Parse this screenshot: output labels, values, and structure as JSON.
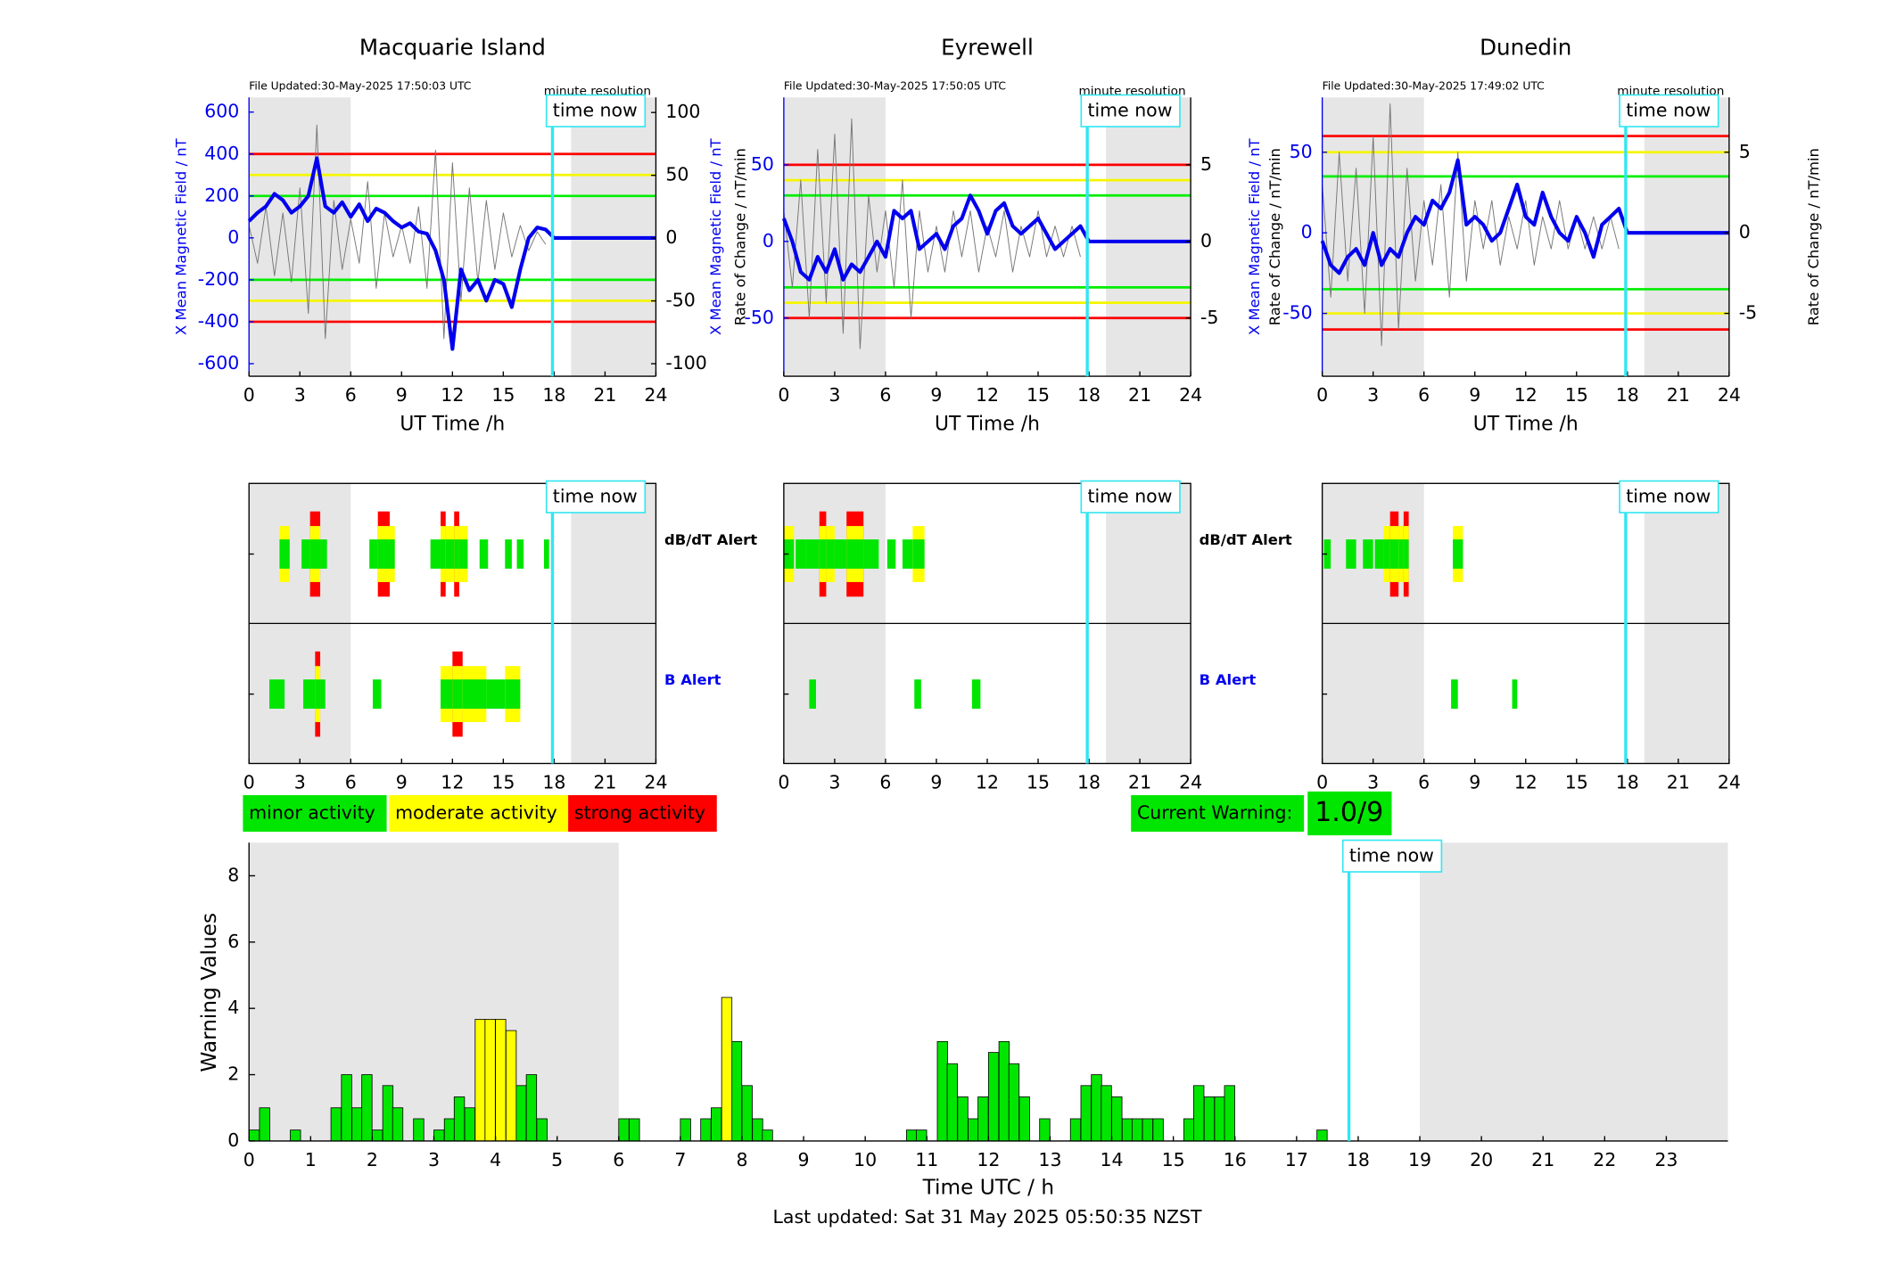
{
  "chart_data": [
    {
      "type": "line",
      "title": "Macquarie Island",
      "file_updated": "File Updated:30-May-2025 17:50:03 UTC",
      "resolution": "minute resolution",
      "y_label": "X Mean Magnetic Field / nT",
      "y2_label": "Rate of Change / nT/min",
      "x_label": "UT Time /h",
      "xlim": [
        0,
        24
      ],
      "xticks": [
        0,
        3,
        6,
        9,
        12,
        15,
        18,
        21,
        24
      ],
      "ylim": [
        -660,
        670
      ],
      "yticks": [
        -600,
        -400,
        -200,
        0,
        200,
        400,
        600
      ],
      "y2lim": [
        -110,
        112
      ],
      "y2ticks": [
        -100,
        -50,
        0,
        50,
        100
      ],
      "shaded": [
        [
          0,
          6
        ],
        [
          19,
          24
        ]
      ],
      "time_now": 17.9,
      "time_now_label": "time now",
      "thresholds": [
        {
          "value": 400,
          "color": "#ff0000"
        },
        {
          "value": -400,
          "color": "#ff0000"
        },
        {
          "value": 300,
          "color": "#f5f500"
        },
        {
          "value": -300,
          "color": "#f5f500"
        },
        {
          "value": 200,
          "color": "#00ee00"
        },
        {
          "value": -200,
          "color": "#00ee00"
        }
      ],
      "field": {
        "color": "#0000ee",
        "x": [
          0,
          0.5,
          1,
          1.5,
          2,
          2.5,
          3,
          3.5,
          4,
          4.5,
          5,
          5.5,
          6,
          6.5,
          7,
          7.5,
          8,
          8.5,
          9,
          9.5,
          10,
          10.5,
          11,
          11.5,
          12,
          12.5,
          13,
          13.5,
          14,
          14.5,
          15,
          15.5,
          16,
          16.5,
          17,
          17.5,
          18,
          24
        ],
        "values": [
          80,
          120,
          150,
          210,
          180,
          120,
          150,
          200,
          380,
          150,
          120,
          170,
          100,
          160,
          80,
          140,
          120,
          80,
          50,
          70,
          30,
          20,
          -60,
          -200,
          -530,
          -150,
          -250,
          -200,
          -300,
          -200,
          -220,
          -330,
          -150,
          0,
          50,
          40,
          0,
          0
        ]
      },
      "rate": {
        "color": "#777777",
        "x": [
          0,
          0.5,
          1,
          1.5,
          2,
          2.5,
          3,
          3.5,
          4,
          4.5,
          5,
          5.5,
          6,
          6.5,
          7,
          7.5,
          8,
          8.5,
          9,
          9.5,
          10,
          10.5,
          11,
          11.5,
          12,
          12.5,
          13,
          13.5,
          14,
          14.5,
          15,
          15.5,
          16,
          16.5,
          17,
          17.5
        ],
        "values": [
          10,
          -20,
          25,
          -30,
          20,
          -35,
          40,
          -60,
          90,
          -80,
          30,
          -25,
          15,
          -20,
          45,
          -40,
          20,
          -15,
          10,
          -20,
          25,
          -40,
          70,
          -80,
          60,
          -50,
          40,
          -35,
          30,
          -25,
          20,
          -15,
          10,
          -10,
          5,
          -5
        ]
      },
      "alerts": [
        {
          "name": "dB/dT Alert",
          "color": "#000000",
          "segments": [
            [
              1.8,
              2.4,
              2
            ],
            [
              3.1,
              3.6,
              1
            ],
            [
              3.6,
              4.2,
              3
            ],
            [
              4.2,
              4.6,
              1
            ],
            [
              7.1,
              7.6,
              1
            ],
            [
              7.6,
              8.3,
              3
            ],
            [
              8.3,
              8.6,
              2
            ],
            [
              10.7,
              11.3,
              1
            ],
            [
              11.3,
              11.6,
              3
            ],
            [
              11.6,
              12.1,
              2
            ],
            [
              12.1,
              12.4,
              3
            ],
            [
              12.4,
              12.9,
              2
            ],
            [
              13.6,
              14.1,
              1
            ],
            [
              15.1,
              15.5,
              1
            ],
            [
              15.8,
              16.2,
              1
            ],
            [
              17.4,
              17.7,
              1
            ]
          ]
        },
        {
          "name": "B Alert",
          "color": "#0000ee",
          "segments": [
            [
              1.2,
              2.1,
              1
            ],
            [
              3.2,
              3.9,
              1
            ],
            [
              3.9,
              4.2,
              3
            ],
            [
              4.2,
              4.5,
              1
            ],
            [
              7.3,
              7.8,
              1
            ],
            [
              11.3,
              12.0,
              2
            ],
            [
              12.0,
              12.6,
              3
            ],
            [
              12.6,
              14.0,
              2
            ],
            [
              14.0,
              15.1,
              1
            ],
            [
              15.1,
              16.0,
              2
            ]
          ]
        }
      ]
    },
    {
      "type": "line",
      "title": "Eyrewell",
      "file_updated": "File Updated:30-May-2025 17:50:05 UTC",
      "resolution": "minute resolution",
      "y_label": "X Mean Magnetic Field / nT",
      "y2_label": "Rate of Change / nT/min",
      "x_label": "UT Time /h",
      "xlim": [
        0,
        24
      ],
      "xticks": [
        0,
        3,
        6,
        9,
        12,
        15,
        18,
        21,
        24
      ],
      "ylim": [
        -88,
        94
      ],
      "yticks": [
        -50,
        0,
        50
      ],
      "y2lim": [
        -8.8,
        9.4
      ],
      "y2ticks": [
        -5,
        0,
        5
      ],
      "shaded": [
        [
          0,
          6
        ],
        [
          19,
          24
        ]
      ],
      "time_now": 17.9,
      "time_now_label": "time now",
      "thresholds": [
        {
          "value": 50,
          "color": "#ff0000"
        },
        {
          "value": -50,
          "color": "#ff0000"
        },
        {
          "value": 40,
          "color": "#f5f500"
        },
        {
          "value": -40,
          "color": "#f5f500"
        },
        {
          "value": 30,
          "color": "#00ee00"
        },
        {
          "value": -30,
          "color": "#00ee00"
        }
      ],
      "field": {
        "color": "#0000ee",
        "x": [
          0,
          0.5,
          1,
          1.5,
          2,
          2.5,
          3,
          3.5,
          4,
          4.5,
          5,
          5.5,
          6,
          6.5,
          7,
          7.5,
          8,
          8.5,
          9,
          9.5,
          10,
          10.5,
          11,
          11.5,
          12,
          12.5,
          13,
          13.5,
          14,
          14.5,
          15,
          15.5,
          16,
          16.5,
          17,
          17.5,
          18,
          24
        ],
        "values": [
          15,
          0,
          -20,
          -25,
          -10,
          -20,
          -5,
          -25,
          -15,
          -20,
          -10,
          0,
          -10,
          20,
          15,
          20,
          -5,
          0,
          5,
          -5,
          10,
          15,
          30,
          20,
          5,
          20,
          25,
          10,
          5,
          10,
          15,
          5,
          -5,
          0,
          5,
          10,
          0,
          0
        ]
      },
      "rate": {
        "color": "#777777",
        "x": [
          0,
          0.5,
          1,
          1.5,
          2,
          2.5,
          3,
          3.5,
          4,
          4.5,
          5,
          5.5,
          6,
          6.5,
          7,
          7.5,
          8,
          8.5,
          9,
          9.5,
          10,
          10.5,
          11,
          11.5,
          12,
          12.5,
          13,
          13.5,
          14,
          14.5,
          15,
          15.5,
          16,
          16.5,
          17,
          17.5
        ],
        "values": [
          2,
          -3,
          4,
          -5,
          6,
          -4,
          7,
          -6,
          8,
          -7,
          3,
          -2,
          2,
          -3,
          4,
          -5,
          2,
          -2,
          1,
          -2,
          2,
          -1,
          2,
          -2,
          1,
          -1,
          2,
          -2,
          1,
          -1,
          2,
          -1,
          1,
          -1,
          1,
          -1
        ]
      },
      "alerts": [
        {
          "name": "dB/dT Alert",
          "color": "#000000",
          "segments": [
            [
              0,
              0.6,
              2
            ],
            [
              0.7,
              1.3,
              1
            ],
            [
              1.3,
              2.1,
              1
            ],
            [
              2.1,
              2.5,
              3
            ],
            [
              2.5,
              3.0,
              2
            ],
            [
              3.0,
              3.7,
              1
            ],
            [
              3.7,
              4.7,
              3
            ],
            [
              4.7,
              5.6,
              1
            ],
            [
              6.1,
              6.6,
              1
            ],
            [
              7.0,
              7.6,
              1
            ],
            [
              7.6,
              8.3,
              2
            ]
          ]
        },
        {
          "name": "B Alert",
          "color": "#0000ee",
          "segments": [
            [
              1.5,
              1.9,
              1
            ],
            [
              7.7,
              8.1,
              1
            ],
            [
              11.1,
              11.6,
              1
            ]
          ]
        }
      ]
    },
    {
      "type": "line",
      "title": "Dunedin",
      "file_updated": "File Updated:30-May-2025 17:49:02 UTC",
      "resolution": "minute resolution",
      "y_label": "X Mean Magnetic Field / nT",
      "y2_label": "Rate of Change / nT/min",
      "x_label": "UT Time /h",
      "xlim": [
        0,
        24
      ],
      "xticks": [
        0,
        3,
        6,
        9,
        12,
        15,
        18,
        21,
        24
      ],
      "ylim": [
        -89,
        84
      ],
      "yticks": [
        -50,
        0,
        50
      ],
      "y2lim": [
        -8.9,
        8.4
      ],
      "y2ticks": [
        -5,
        0,
        5
      ],
      "shaded": [
        [
          0,
          6
        ],
        [
          19,
          24
        ]
      ],
      "time_now": 17.9,
      "time_now_label": "time now",
      "thresholds": [
        {
          "value": 60,
          "color": "#ff0000"
        },
        {
          "value": -60,
          "color": "#ff0000"
        },
        {
          "value": 50,
          "color": "#f5f500"
        },
        {
          "value": -50,
          "color": "#f5f500"
        },
        {
          "value": 35,
          "color": "#00ee00"
        },
        {
          "value": -35,
          "color": "#00ee00"
        }
      ],
      "field": {
        "color": "#0000ee",
        "x": [
          0,
          0.5,
          1,
          1.5,
          2,
          2.5,
          3,
          3.5,
          4,
          4.5,
          5,
          5.5,
          6,
          6.5,
          7,
          7.5,
          8,
          8.5,
          9,
          9.5,
          10,
          10.5,
          11,
          11.5,
          12,
          12.5,
          13,
          13.5,
          14,
          14.5,
          15,
          15.5,
          16,
          16.5,
          17,
          17.5,
          18,
          24
        ],
        "values": [
          -5,
          -20,
          -25,
          -15,
          -10,
          -20,
          0,
          -20,
          -10,
          -15,
          0,
          10,
          5,
          20,
          15,
          25,
          45,
          5,
          10,
          5,
          -5,
          0,
          15,
          30,
          10,
          5,
          25,
          10,
          0,
          -5,
          10,
          0,
          -15,
          5,
          10,
          15,
          0,
          0
        ]
      },
      "rate": {
        "color": "#777777",
        "x": [
          0,
          0.5,
          1,
          1.5,
          2,
          2.5,
          3,
          3.5,
          4,
          4.5,
          5,
          5.5,
          6,
          6.5,
          7,
          7.5,
          8,
          8.5,
          9,
          9.5,
          10,
          10.5,
          11,
          11.5,
          12,
          12.5,
          13,
          13.5,
          14,
          14.5,
          15,
          15.5,
          16,
          16.5,
          17,
          17.5
        ],
        "values": [
          3,
          -4,
          5,
          -3,
          4,
          -5,
          6,
          -7,
          8,
          -6,
          4,
          -3,
          2,
          -2,
          3,
          -4,
          5,
          -3,
          2,
          -1,
          2,
          -2,
          1,
          -1,
          2,
          -2,
          1,
          -1,
          2,
          -1,
          1,
          -1,
          1,
          -1,
          1,
          -1
        ]
      },
      "alerts": [
        {
          "color": "#000000",
          "segments": [
            [
              0.1,
              0.5,
              1
            ],
            [
              1.4,
              2.0,
              1
            ],
            [
              2.4,
              3.0,
              1
            ],
            [
              3.1,
              3.6,
              1
            ],
            [
              3.6,
              4.0,
              2
            ],
            [
              4.0,
              4.5,
              3
            ],
            [
              4.5,
              4.8,
              2
            ],
            [
              4.8,
              5.1,
              3
            ],
            [
              7.7,
              8.3,
              2
            ]
          ]
        },
        {
          "color": "#0000ee",
          "segments": [
            [
              7.6,
              8.0,
              1
            ],
            [
              11.2,
              11.5,
              1
            ]
          ]
        }
      ]
    },
    {
      "type": "bar",
      "y_label": "Warning Values",
      "x_label": "Time UTC / h",
      "xlim": [
        0,
        24
      ],
      "xticks": [
        0,
        1,
        2,
        3,
        4,
        5,
        6,
        7,
        8,
        9,
        10,
        11,
        12,
        13,
        14,
        15,
        16,
        17,
        18,
        19,
        20,
        21,
        22,
        23
      ],
      "ylim": [
        0,
        9
      ],
      "yticks": [
        0,
        2,
        4,
        6,
        8
      ],
      "shaded": [
        [
          0,
          6
        ],
        [
          19,
          24
        ]
      ],
      "time_now": 17.85,
      "time_now_label": "time now",
      "series": [
        {
          "color": "#00e600",
          "x": [
            0,
            0.17,
            0.67,
            1.33,
            1.5,
            1.67,
            1.83,
            2.0,
            2.17,
            2.33,
            2.67,
            3.0,
            3.17,
            3.33,
            3.5,
            4.33,
            4.5,
            4.67,
            6.0,
            6.17,
            7.0,
            7.33,
            7.5,
            7.83,
            8.0,
            8.17,
            8.33,
            10.67,
            10.83,
            11.17,
            11.33,
            11.5,
            11.67,
            11.83,
            12.0,
            12.17,
            12.33,
            12.5,
            12.83,
            13.33,
            13.5,
            13.67,
            13.83,
            14.0,
            14.17,
            14.33,
            14.5,
            14.67,
            15.17,
            15.33,
            15.5,
            15.67,
            15.83,
            17.33
          ],
          "values": [
            0.33,
            1,
            0.33,
            1,
            2,
            1,
            2,
            0.33,
            1.67,
            1,
            0.67,
            0.33,
            0.67,
            1.33,
            1,
            1.67,
            2,
            0.67,
            0.67,
            0.67,
            0.67,
            0.67,
            1,
            3,
            1.67,
            0.67,
            0.33,
            0.33,
            0.33,
            3,
            2.33,
            1.33,
            0.67,
            1.33,
            2.67,
            3,
            2.33,
            1.33,
            0.67,
            0.67,
            1.67,
            2,
            1.67,
            1.33,
            0.67,
            0.67,
            0.67,
            0.67,
            0.67,
            1.67,
            1.33,
            1.33,
            1.67,
            0.33
          ]
        },
        {
          "color": "#ffff00",
          "x": [
            3.67,
            3.83,
            4.0,
            4.17,
            7.67
          ],
          "values": [
            3.67,
            3.67,
            3.67,
            3.33,
            4.33
          ]
        }
      ]
    }
  ],
  "legend": {
    "items": [
      {
        "label": "minor activity",
        "color": "#00e600"
      },
      {
        "label": "moderate activity",
        "color": "#ffff00"
      },
      {
        "label": "strong activity",
        "color": "#ff0000"
      }
    ],
    "current_warning_label": "Current Warning:",
    "current_warning_value": "1.0/9"
  },
  "last_updated": "Last updated: Sat 31 May 2025 05:50:35 NZST"
}
